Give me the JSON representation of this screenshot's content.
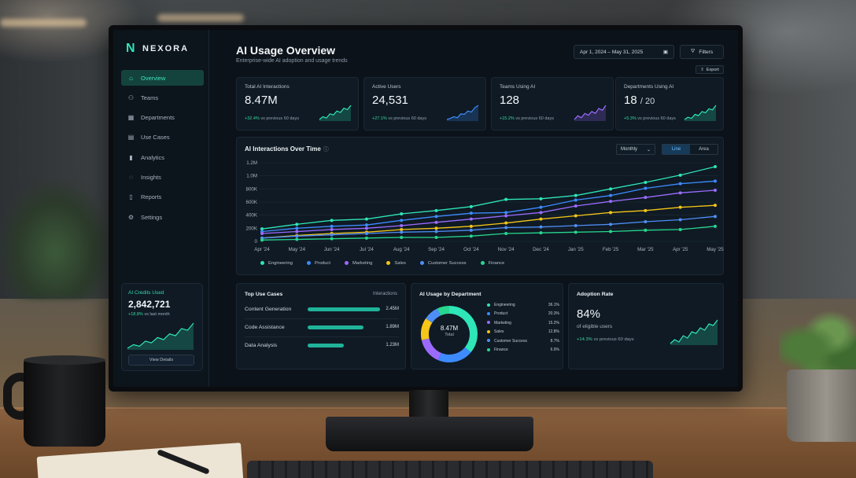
{
  "app": {
    "brand": "NEXORA",
    "accent": "#2ee6b8"
  },
  "sidebar": {
    "items": [
      {
        "label": "Overview",
        "icon": "home-icon",
        "active": true
      },
      {
        "label": "Teams",
        "icon": "users-icon"
      },
      {
        "label": "Departments",
        "icon": "grid-icon"
      },
      {
        "label": "Use Cases",
        "icon": "document-icon"
      },
      {
        "label": "Analytics",
        "icon": "bar-chart-icon"
      },
      {
        "label": "Insights",
        "icon": "lightbulb-icon"
      },
      {
        "label": "Reports",
        "icon": "report-icon"
      },
      {
        "label": "Settings",
        "icon": "gear-icon"
      }
    ],
    "credits": {
      "label": "AI Credits Used",
      "value": "2,842,721",
      "delta": "+18.8%",
      "delta_suffix": "vs last month",
      "button": "View Details",
      "trend": [
        2,
        3,
        2.6,
        4,
        3.5,
        5,
        4.4,
        6,
        5.5,
        7.5,
        7,
        9
      ]
    }
  },
  "header": {
    "title": "AI Usage Overview",
    "subtitle": "Enterprise-wide AI adoption and usage trends",
    "date_range": "Apr 1, 2024 – May 31, 2025",
    "filters_label": "Filters",
    "export_label": "Export"
  },
  "kpis": [
    {
      "label": "Total AI Interactions",
      "value": "8.47M",
      "delta": "+32.4%",
      "delta_suffix": "vs previous 60 days",
      "color": "#2ee6b8",
      "trend": [
        3,
        4,
        3.5,
        5,
        4.6,
        6,
        5.5,
        7,
        6.5,
        8
      ]
    },
    {
      "label": "Active Users",
      "value": "24,531",
      "delta": "+27.1%",
      "delta_suffix": "vs previous 60 days",
      "color": "#3d8bff",
      "trend": [
        3,
        3.4,
        4,
        3.6,
        5,
        4.8,
        6,
        5.6,
        7.2,
        8
      ]
    },
    {
      "label": "Teams Using AI",
      "value": "128",
      "delta": "+15.2%",
      "delta_suffix": "vs previous 60 days",
      "color": "#9b6bff",
      "trend": [
        3,
        4.2,
        3.6,
        5,
        4.4,
        5.6,
        5,
        6.6,
        6,
        7.6
      ]
    },
    {
      "label": "Departments Using AI",
      "value": "18",
      "value_of": "/ 20",
      "delta": "+5.3%",
      "delta_suffix": "vs previous 60 days",
      "color": "#2ee6b8",
      "trend": [
        3,
        3.8,
        3.4,
        4.8,
        4.4,
        5.8,
        5.4,
        6.8,
        6.4,
        8
      ]
    }
  ],
  "main_chart": {
    "title": "AI Interactions Over Time",
    "period": "Monthly",
    "toggle": {
      "line": "Line",
      "area": "Area"
    }
  },
  "chart_data": {
    "type": "line",
    "title": "AI Interactions Over Time",
    "x": [
      "Apr '24",
      "May '24",
      "Jun '24",
      "Jul '24",
      "Aug '24",
      "Sep '24",
      "Oct '24",
      "Nov '24",
      "Dec '24",
      "Jan '25",
      "Feb '25",
      "Mar '25",
      "Apr '25",
      "May '25"
    ],
    "y_ticks": [
      "0",
      "200K",
      "400K",
      "600K",
      "800K",
      "1.0M",
      "1.2M"
    ],
    "ylim": [
      0,
      1200000
    ],
    "grid": true,
    "legend_position": "bottom",
    "series": [
      {
        "name": "Engineering",
        "color": "#2ee6b8",
        "values": [
          190000,
          260000,
          320000,
          340000,
          420000,
          470000,
          530000,
          640000,
          650000,
          700000,
          800000,
          900000,
          1010000,
          1140000
        ]
      },
      {
        "name": "Product",
        "color": "#3d8bff",
        "values": [
          150000,
          200000,
          230000,
          250000,
          320000,
          380000,
          430000,
          440000,
          520000,
          630000,
          700000,
          810000,
          880000,
          920000
        ]
      },
      {
        "name": "Marketing",
        "color": "#9b6bff",
        "values": [
          120000,
          150000,
          180000,
          200000,
          240000,
          290000,
          340000,
          390000,
          440000,
          540000,
          610000,
          670000,
          740000,
          780000
        ]
      },
      {
        "name": "Sales",
        "color": "#f5c518",
        "values": [
          50000,
          90000,
          120000,
          140000,
          180000,
          200000,
          230000,
          280000,
          340000,
          390000,
          440000,
          470000,
          520000,
          550000
        ]
      },
      {
        "name": "Customer Success",
        "color": "#4f8ef7",
        "values": [
          50000,
          80000,
          100000,
          120000,
          140000,
          150000,
          170000,
          210000,
          220000,
          240000,
          260000,
          300000,
          330000,
          380000
        ]
      },
      {
        "name": "Finance",
        "color": "#27d78e",
        "values": [
          20000,
          30000,
          40000,
          50000,
          60000,
          60000,
          80000,
          120000,
          130000,
          140000,
          150000,
          170000,
          180000,
          230000
        ]
      }
    ]
  },
  "top_use_cases": {
    "title": "Top Use Cases",
    "column": "Interactions",
    "rows": [
      {
        "label": "Content Generation",
        "value": "2.45M",
        "fraction": 1.0
      },
      {
        "label": "Code Assistance",
        "value": "1.89M",
        "fraction": 0.77
      },
      {
        "label": "Data Analysis",
        "value": "1.23M",
        "fraction": 0.5
      }
    ]
  },
  "usage_by_department": {
    "title": "AI Usage by Department",
    "center_value": "8.47M",
    "center_label": "Total",
    "slices": [
      {
        "name": "Engineering",
        "pct": "36.1%",
        "value": 36.1,
        "color": "#2ee6b8"
      },
      {
        "name": "Product",
        "pct": "20.3%",
        "value": 20.3,
        "color": "#3d8bff"
      },
      {
        "name": "Marketing",
        "pct": "15.2%",
        "value": 15.2,
        "color": "#9b6bff"
      },
      {
        "name": "Sales",
        "pct": "12.8%",
        "value": 12.8,
        "color": "#f5c518"
      },
      {
        "name": "Customer Success",
        "pct": "8.7%",
        "value": 8.7,
        "color": "#4f8ef7"
      },
      {
        "name": "Finance",
        "pct": "6.9%",
        "value": 6.9,
        "color": "#27d78e"
      }
    ]
  },
  "adoption": {
    "title": "Adoption Rate",
    "value": "84%",
    "sub": "of eligible users",
    "delta": "+14.3%",
    "delta_suffix": "vs previous 60 days",
    "trend": [
      2,
      3,
      2.4,
      4,
      3.4,
      5,
      4.6,
      6,
      5.4,
      7,
      6.6,
      8
    ]
  }
}
